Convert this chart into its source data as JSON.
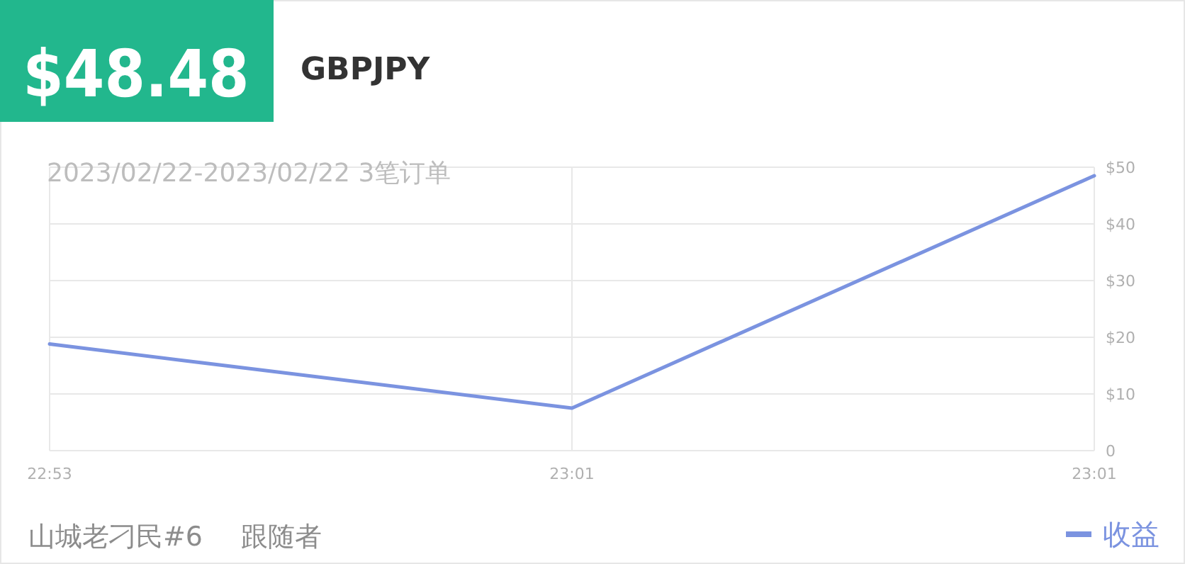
{
  "chart_data": {
    "type": "line",
    "title": "$48.48",
    "subtitle": "GBPJPY",
    "annotations": [
      "2023/02/22-2023/02/22 3笔订单",
      "山城老刁民#6",
      "跟随者"
    ],
    "categories": [
      "22:53",
      "23:01",
      "23:01"
    ],
    "series": [
      {
        "name": "收益",
        "color": "#7b93e0",
        "values": [
          18.8,
          7.5,
          48.5
        ]
      }
    ],
    "ylim": [
      0,
      50
    ],
    "yticks": [
      0,
      {
        "value": 10,
        "label": "$10"
      },
      {
        "value": 20,
        "label": "$20"
      },
      {
        "value": 30,
        "label": "$30"
      },
      {
        "value": 40,
        "label": "$40"
      },
      {
        "value": 50,
        "label": "$50"
      }
    ],
    "grid": true,
    "legend": "bottom right"
  }
}
